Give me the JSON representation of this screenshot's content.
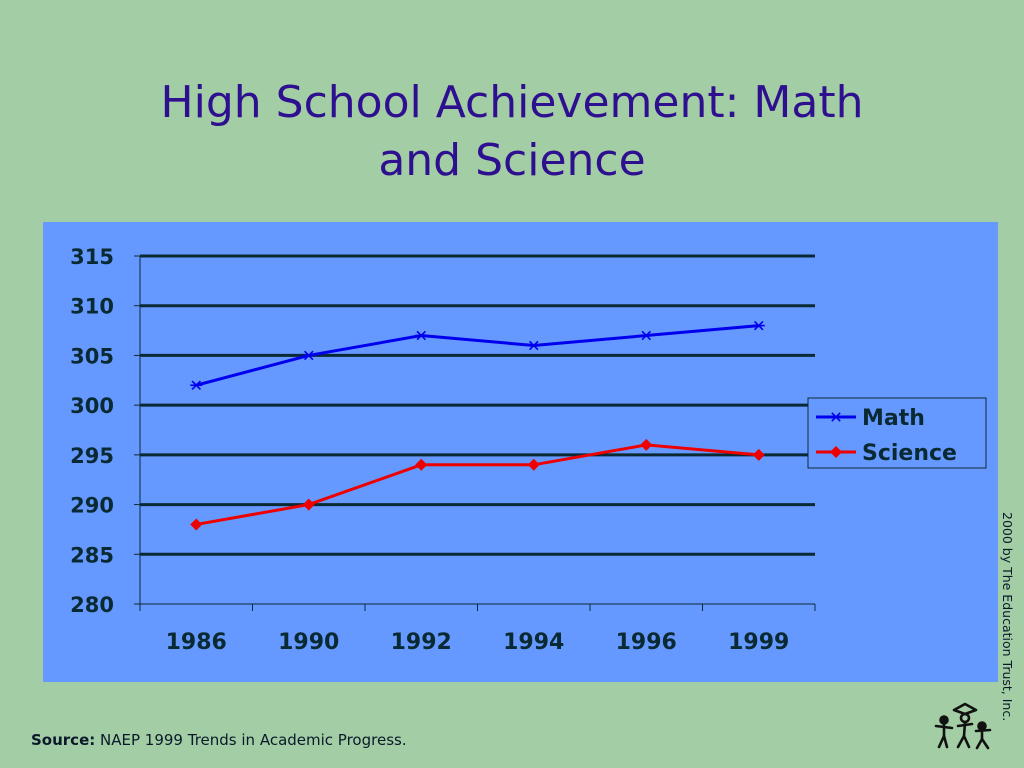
{
  "slide": {
    "title_line1": "High School Achievement: Math",
    "title_line2": "and Science",
    "source_label": "Source:",
    "source_text": "NAEP 1999 Trends in Academic Progress.",
    "copyright": "2000 by The Education Trust, Inc.",
    "logo_icon": "education-trust-logo-icon"
  },
  "chart_data": {
    "type": "line",
    "title": "",
    "xlabel": "",
    "ylabel": "",
    "categories": [
      "1986",
      "1990",
      "1992",
      "1994",
      "1996",
      "1999"
    ],
    "ylim": [
      280,
      315
    ],
    "yticks": [
      "280",
      "285",
      "290",
      "295",
      "300",
      "305",
      "310",
      "315"
    ],
    "grid": true,
    "legend_position": "right",
    "series": [
      {
        "name": "Math",
        "values": [
          302,
          305,
          307,
          306,
          307,
          308
        ],
        "color": "#0000ee",
        "marker": "asterisk"
      },
      {
        "name": "Science",
        "values": [
          288,
          290,
          294,
          294,
          296,
          295
        ],
        "color": "#ee0000",
        "marker": "diamond"
      }
    ]
  }
}
